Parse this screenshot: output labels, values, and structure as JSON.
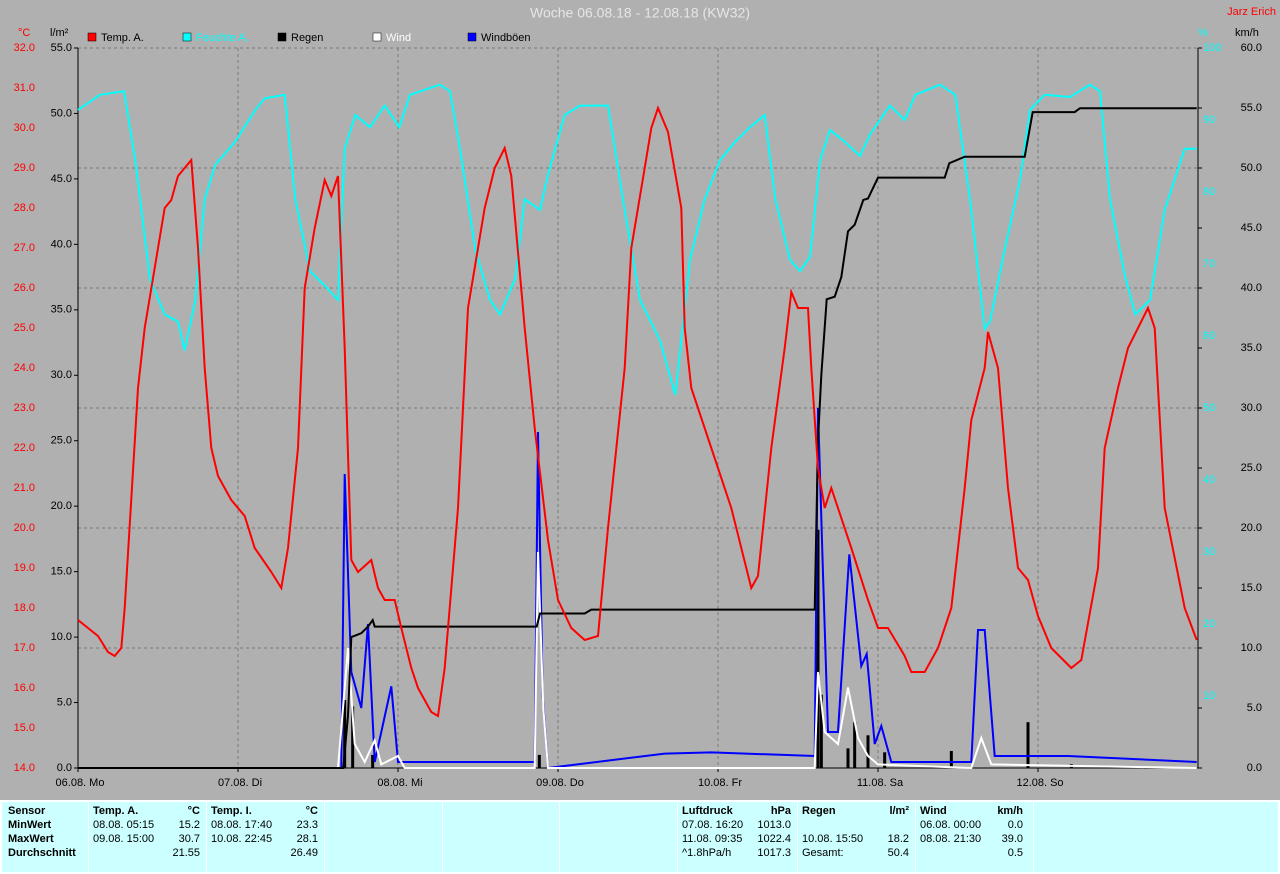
{
  "chart_data": {
    "type": "line",
    "title": "Woche 06.08.18 - 12.08.18 (KW32)",
    "author": "Jarz Erich",
    "grid": true,
    "xlim": [
      0,
      168
    ],
    "xticks": [
      {
        "value": 0,
        "label": "06.08. Mo"
      },
      {
        "value": 24,
        "label": "07.08. Di"
      },
      {
        "value": 48,
        "label": "08.08. Mi"
      },
      {
        "value": 72,
        "label": "09.08. Do"
      },
      {
        "value": 96,
        "label": "10.08. Fr"
      },
      {
        "value": 120,
        "label": "11.08. Sa"
      },
      {
        "value": 144,
        "label": "12.08. So"
      }
    ],
    "axes": {
      "temp": {
        "unit": "°C",
        "color": "#ff0000",
        "side": "left",
        "ylim": [
          14,
          32
        ],
        "yticks": [
          {
            "value": 14,
            "label": "14.0"
          },
          {
            "value": 15,
            "label": "15.0"
          },
          {
            "value": 16,
            "label": "16.0"
          },
          {
            "value": 17,
            "label": "17.0"
          },
          {
            "value": 18,
            "label": "18.0"
          },
          {
            "value": 19,
            "label": "19.0"
          },
          {
            "value": 20,
            "label": "20.0"
          },
          {
            "value": 21,
            "label": "21.0"
          },
          {
            "value": 22,
            "label": "22.0"
          },
          {
            "value": 23,
            "label": "23.0"
          },
          {
            "value": 24,
            "label": "24.0"
          },
          {
            "value": 25,
            "label": "25.0"
          },
          {
            "value": 26,
            "label": "26.0"
          },
          {
            "value": 27,
            "label": "27.0"
          },
          {
            "value": 28,
            "label": "28.0"
          },
          {
            "value": 29,
            "label": "29.0"
          },
          {
            "value": 30,
            "label": "30.0"
          },
          {
            "value": 31,
            "label": "31.0"
          },
          {
            "value": 32,
            "label": "32.0"
          }
        ]
      },
      "rain": {
        "unit": "l/m²",
        "color": "#000000",
        "side": "left",
        "ylim": [
          0,
          55
        ],
        "yticks": [
          {
            "value": 0,
            "label": "0.0"
          },
          {
            "value": 5,
            "label": "5.0"
          },
          {
            "value": 10,
            "label": "10.0"
          },
          {
            "value": 15,
            "label": "15.0"
          },
          {
            "value": 20,
            "label": "20.0"
          },
          {
            "value": 25,
            "label": "25.0"
          },
          {
            "value": 30,
            "label": "30.0"
          },
          {
            "value": 35,
            "label": "35.0"
          },
          {
            "value": 40,
            "label": "40.0"
          },
          {
            "value": 45,
            "label": "45.0"
          },
          {
            "value": 50,
            "label": "50.0"
          },
          {
            "value": 55,
            "label": "55.0"
          }
        ]
      },
      "hum": {
        "unit": "%",
        "color": "#00ffff",
        "side": "right",
        "ylim": [
          0,
          100
        ],
        "yticks": [
          10,
          20,
          30,
          40,
          50,
          60,
          70,
          80,
          90,
          100
        ]
      },
      "wind": {
        "unit": "km/h",
        "color": "#000000",
        "side": "right",
        "ylim": [
          0,
          60
        ],
        "yticks": [
          {
            "value": 0,
            "label": "0.0"
          },
          {
            "value": 5,
            "label": "5.0"
          },
          {
            "value": 10,
            "label": "10.0"
          },
          {
            "value": 15,
            "label": "15.0"
          },
          {
            "value": 20,
            "label": "20.0"
          },
          {
            "value": 25,
            "label": "25.0"
          },
          {
            "value": 30,
            "label": "30.0"
          },
          {
            "value": 35,
            "label": "35.0"
          },
          {
            "value": 40,
            "label": "40.0"
          },
          {
            "value": 45,
            "label": "45.0"
          },
          {
            "value": 50,
            "label": "50.0"
          },
          {
            "value": 55,
            "label": "55.0"
          },
          {
            "value": 60,
            "label": "60.0"
          }
        ]
      }
    },
    "series": [
      {
        "name": "Temp. A.",
        "color": "#ff0000",
        "axis": "temp",
        "x": [
          0,
          3,
          4.5,
          5.5,
          6.5,
          7,
          9,
          10,
          11.5,
          13,
          14,
          15,
          17,
          18,
          19,
          20,
          21,
          23,
          25,
          26.5,
          29,
          30.5,
          31.5,
          33,
          34,
          35.5,
          37,
          38,
          39,
          40,
          41,
          42,
          44,
          45,
          46,
          47.5,
          48.5,
          50,
          51,
          53,
          54,
          55,
          57,
          58.5,
          61,
          62.5,
          64,
          65,
          67,
          68.5,
          70.5,
          72,
          74,
          76,
          78,
          79.5,
          82,
          83,
          85,
          86,
          87,
          88.5,
          90.5,
          91,
          92,
          95,
          98,
          101,
          102,
          104,
          106,
          107,
          108,
          109.5,
          110,
          111,
          112,
          113,
          116,
          118.5,
          120,
          121.5,
          124,
          125,
          127,
          129,
          131,
          133,
          134,
          136,
          136.5,
          138,
          139.5,
          141,
          142.5,
          144,
          146,
          149,
          150.5,
          153,
          154,
          156,
          157.5,
          160.5,
          161.5,
          163,
          166,
          167.8
        ],
        "values": [
          17.7,
          17.3,
          16.9,
          16.8,
          17,
          18,
          23.5,
          25,
          26.5,
          28,
          28.2,
          28.8,
          29.2,
          27,
          24,
          22,
          21.3,
          20.7,
          20.3,
          19.5,
          18.9,
          18.5,
          19.5,
          22,
          26,
          27.5,
          28.7,
          28.3,
          28.8,
          24.5,
          19.2,
          18.9,
          19.2,
          18.5,
          18.2,
          18.2,
          17.5,
          16.5,
          16,
          15.4,
          15.3,
          16.5,
          20.5,
          25.5,
          28,
          29,
          29.5,
          28.8,
          25,
          22.5,
          19.7,
          18.2,
          17.5,
          17.2,
          17.3,
          20,
          24,
          27,
          29,
          30,
          30.5,
          29.9,
          28,
          25,
          23.5,
          22,
          20.5,
          18.5,
          18.8,
          22,
          24.5,
          25.9,
          25.5,
          25.5,
          24,
          21.5,
          20.5,
          21,
          19.5,
          18.2,
          17.5,
          17.5,
          16.8,
          16.4,
          16.4,
          17,
          18,
          21,
          22.7,
          24,
          24.9,
          24,
          21,
          19,
          18.7,
          17.8,
          17,
          16.5,
          16.7,
          19,
          22,
          23.5,
          24.5,
          25.5,
          25,
          20.5,
          18,
          17.2
        ]
      },
      {
        "name": "Feuchte A.",
        "color": "#00ffff",
        "axis": "hum",
        "x": [
          0,
          3.3,
          6.9,
          8.6,
          10.8,
          13,
          15,
          16,
          17.6,
          19,
          20.6,
          23.6,
          26.6,
          28,
          31,
          32.6,
          34.8,
          37,
          39,
          40,
          41.6,
          43.8,
          46,
          48.2,
          49.8,
          54.3,
          55.8,
          57.3,
          59.6,
          61.8,
          63.3,
          65.6,
          67,
          69.3,
          70.5,
          73,
          75.3,
          79.5,
          82,
          84.3,
          87.3,
          89.6,
          91.8,
          94,
          96.3,
          98.6,
          100.8,
          103,
          104.6,
          106.8,
          108.3,
          109.8,
          111.3,
          112.8,
          115,
          117.3,
          118.8,
          121.8,
          124,
          125.6,
          129.3,
          131.6,
          133.8,
          136,
          136.8,
          139,
          141.3,
          142.8,
          145,
          148.8,
          151.8,
          153.3,
          154.8,
          157,
          158.6,
          160.8,
          163,
          166,
          167.8
        ],
        "values": [
          91.4,
          93.5,
          94,
          84.4,
          67.8,
          63,
          62,
          58,
          65,
          79,
          83.8,
          87,
          91.4,
          93,
          93.5,
          79,
          69,
          67,
          65,
          86,
          90.7,
          89,
          92,
          89,
          93.5,
          94.9,
          94,
          86,
          72,
          65,
          63,
          68,
          79,
          77.5,
          82.4,
          90.7,
          92,
          92,
          77.5,
          65,
          59.4,
          51.8,
          70.6,
          79,
          84.4,
          87,
          89,
          90.7,
          79,
          70.6,
          69,
          71,
          84.4,
          88.6,
          87,
          85,
          88,
          92,
          90,
          93.5,
          94.9,
          93.5,
          79,
          61,
          62,
          72,
          81.7,
          91.4,
          93.5,
          93.2,
          94.9,
          94,
          79,
          68.5,
          63,
          65,
          77.5,
          86,
          86
        ]
      },
      {
        "name": "Regen",
        "color": "#000000",
        "axis": "rain",
        "x": [
          0,
          39.8,
          40.5,
          41,
          42.5,
          43.5,
          44.2,
          44.5,
          68.8,
          69.3,
          76,
          77,
          110.5,
          111,
          111.5,
          112.3,
          113.5,
          114.5,
          115.5,
          116.5,
          117.8,
          118.5,
          120,
          130,
          130.7,
          133,
          142,
          143.2,
          149.5,
          150.3,
          167.8
        ],
        "values": [
          0,
          0,
          4,
          10,
          10.3,
          10.8,
          11.3,
          10.8,
          10.8,
          11.8,
          11.8,
          12.1,
          12.1,
          25,
          30,
          35.8,
          36,
          37.5,
          41,
          41.5,
          43.4,
          43.5,
          45.1,
          45.1,
          46.2,
          46.7,
          46.7,
          50.1,
          50.1,
          50.4,
          50.4
        ]
      },
      {
        "name": "Wind",
        "color": "#ffffff",
        "axis": "wind",
        "x": [
          0,
          39,
          40.5,
          41.5,
          43,
          44.5,
          45.5,
          48,
          49,
          68.5,
          69,
          69.8,
          70.5,
          110.5,
          111,
          112,
          114,
          115.5,
          117,
          118.5,
          120,
          134,
          135.5,
          137,
          167.8
        ],
        "values": [
          0,
          0,
          10,
          2,
          0.5,
          2.3,
          0.3,
          1,
          0,
          0,
          18,
          5,
          0,
          0,
          8,
          3,
          2,
          6.7,
          2.5,
          1,
          0.3,
          0,
          2.5,
          0.3,
          0
        ]
      },
      {
        "name": "Windböen",
        "color": "#0000ff",
        "axis": "wind",
        "x": [
          0,
          39.5,
          40,
          41,
          42.5,
          43.5,
          44.5,
          47,
          48,
          68.5,
          69,
          69.7,
          70.5,
          88,
          95,
          110.5,
          111,
          111.7,
          112.5,
          114,
          115.7,
          117.5,
          118.3,
          119.5,
          120.5,
          122,
          134,
          135,
          136,
          137.5,
          148.5,
          167.8
        ],
        "values": [
          0,
          0,
          24.5,
          8,
          5,
          12,
          0.5,
          6.8,
          0.5,
          0.5,
          28,
          6,
          0,
          1.2,
          1.3,
          1,
          30,
          17,
          3,
          3,
          17.8,
          8.5,
          9.5,
          2,
          3.5,
          0.5,
          0.5,
          11.5,
          11.5,
          1,
          1,
          0.5
        ]
      }
    ],
    "bars": {
      "axis": "rain",
      "color": "#000000",
      "x": [
        40,
        41.2,
        44.2,
        69.2,
        111,
        111.5,
        115.5,
        116.5,
        118.5,
        121,
        131,
        142.5,
        149
      ],
      "values": [
        5.2,
        4.7,
        1,
        1,
        18.2,
        5.6,
        1.5,
        3.5,
        2.5,
        1.2,
        1.3,
        3.5,
        0.3
      ]
    }
  },
  "stats": {
    "sensor": {
      "header": "Sensor",
      "rows": [
        "MinWert",
        "MaxWert",
        "Durchschnitt"
      ]
    },
    "columns": [
      {
        "header": "Temp. A.",
        "unit": "°C",
        "rows": [
          {
            "time": "08.08. 05:15",
            "value": "15.2"
          },
          {
            "time": "09.08. 15:00",
            "value": "30.7"
          },
          {
            "value": "21.55"
          }
        ]
      },
      {
        "header": "Temp. I.",
        "unit": "°C",
        "rows": [
          {
            "time": "08.08. 17:40",
            "value": "23.3"
          },
          {
            "time": "10.08. 22:45",
            "value": "28.1"
          },
          {
            "value": "26.49"
          }
        ]
      },
      {
        "header": "Luftdruck",
        "unit": "hPa",
        "rows": [
          {
            "time": "07.08. 16:20",
            "value": "1013.0"
          },
          {
            "time": "11.08. 09:35",
            "value": "1022.4"
          },
          {
            "time": "^1.8hPa/h",
            "value": "1017.3"
          }
        ]
      },
      {
        "header": "Regen",
        "unit": "l/m²",
        "rows": [
          null,
          {
            "time": "10.08. 15:50",
            "value": "18.2"
          },
          {
            "time": "Gesamt:",
            "value": "50.4"
          }
        ]
      },
      {
        "header": "Wind",
        "unit": "km/h",
        "rows": [
          {
            "time": "06.08. 00:00",
            "value": "0.0"
          },
          {
            "time": "08.08. 21:30",
            "value": "39.0"
          },
          {
            "value": "0.5"
          }
        ]
      }
    ]
  }
}
